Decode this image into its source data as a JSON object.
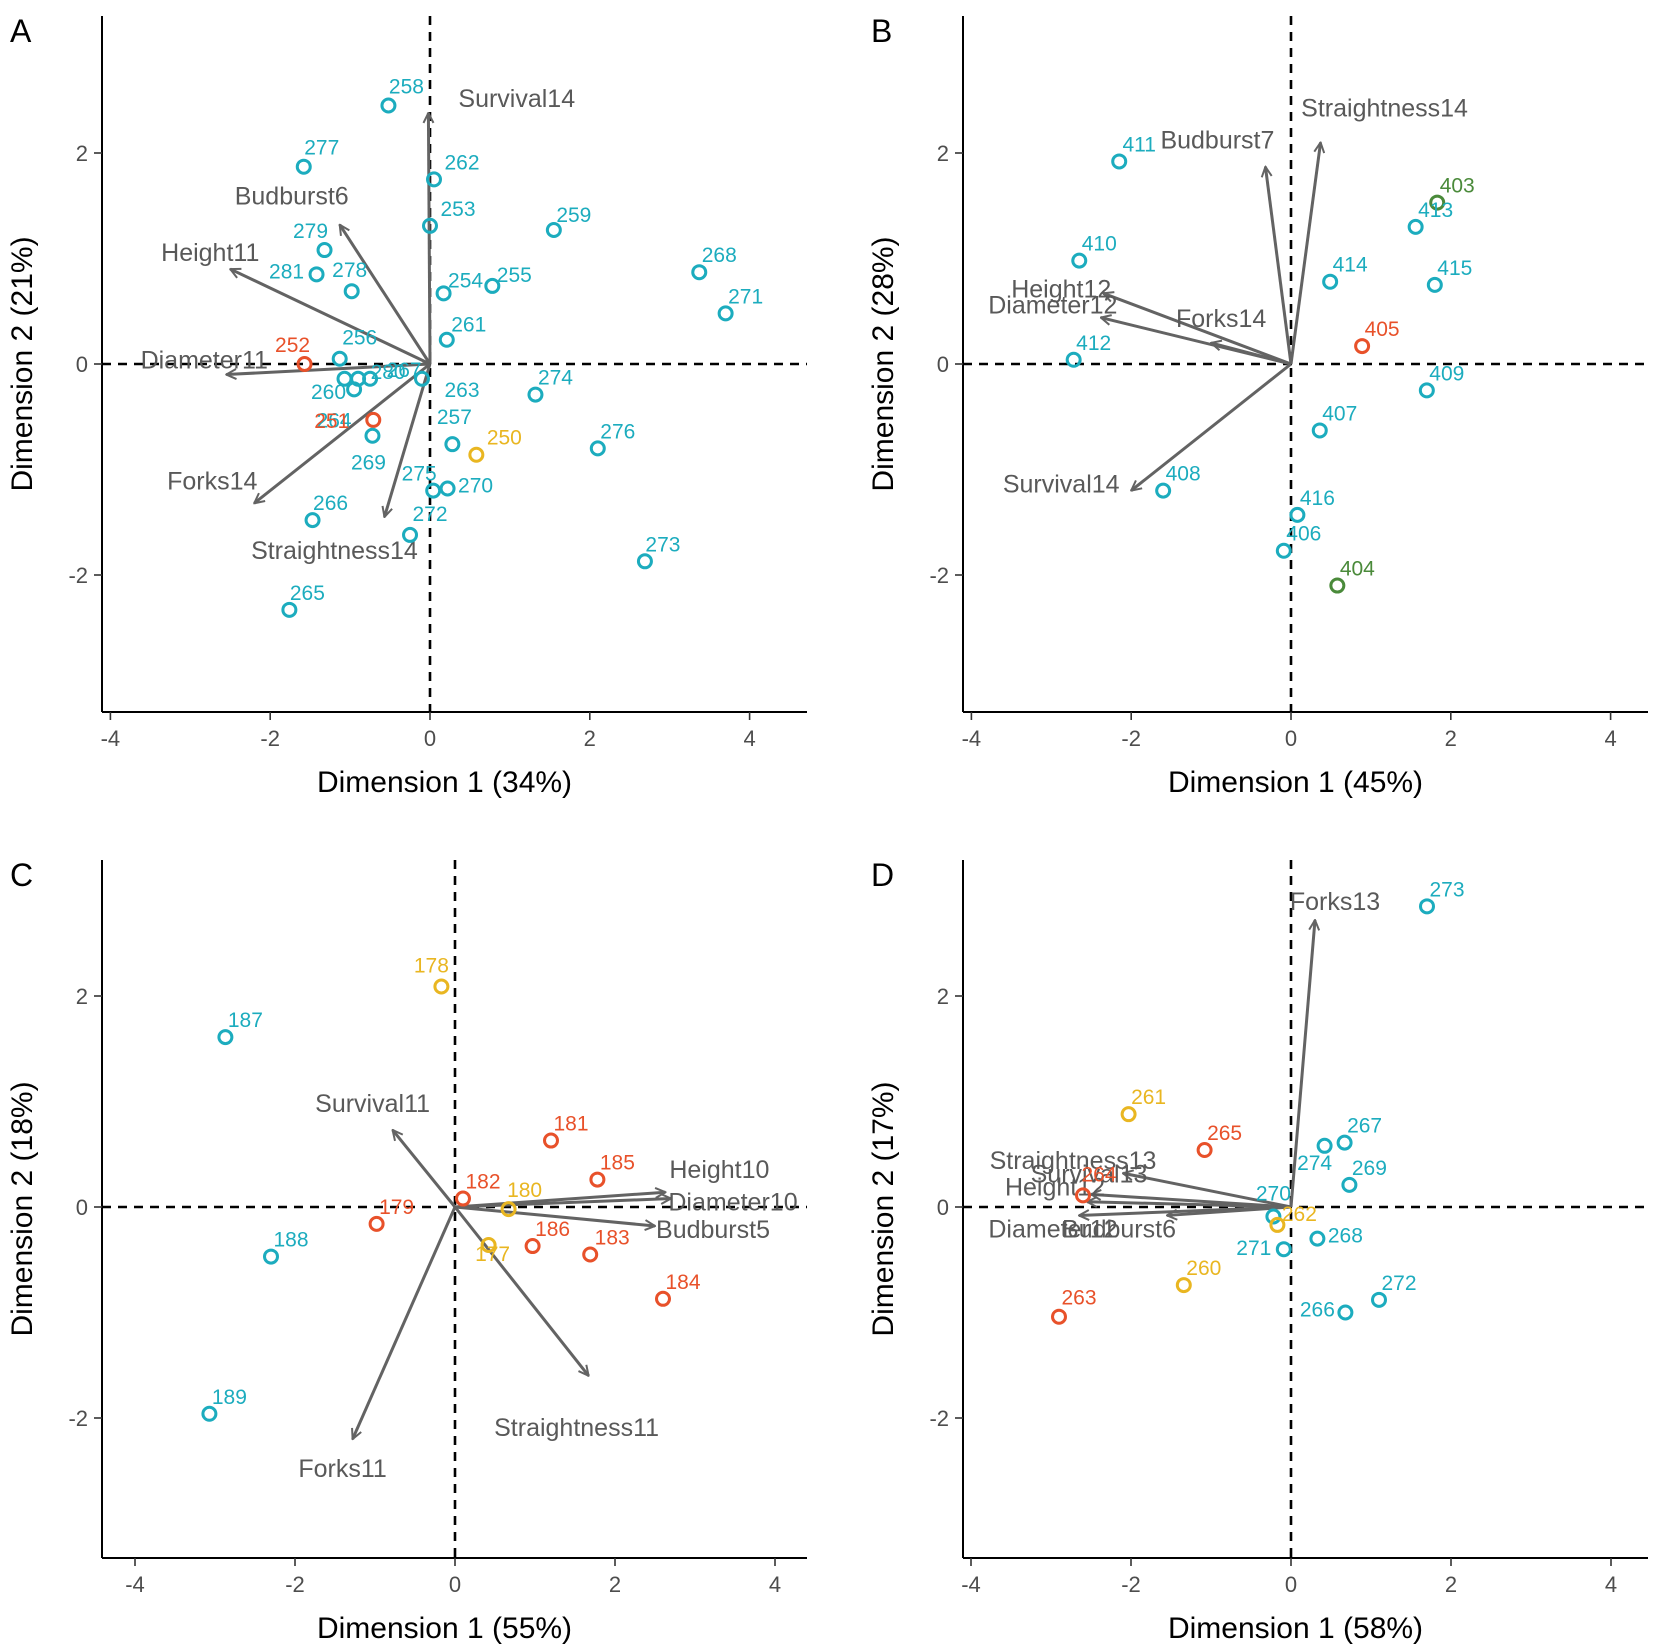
{
  "colors": {
    "group_cyan": "#1CACBE",
    "group_red": "#E8512A",
    "group_yellow": "#E9B621",
    "group_green": "#4A8A3A",
    "arrow": "#636363",
    "axis": "#000000",
    "zero_line": "#000000"
  },
  "chart_data": [
    {
      "panel": "A",
      "type": "scatter",
      "xlabel": "Dimension 1 (34%)",
      "ylabel": "Dimension 2 (21%)",
      "xlim": [
        -4.45,
        4.4
      ],
      "ylim": [
        -3.3,
        3.3
      ],
      "xticks": [
        -4,
        -2,
        0,
        2,
        4
      ],
      "yticks": [
        -2,
        0,
        2
      ],
      "grid": false,
      "points": [
        {
          "label": "258",
          "x": -0.52,
          "y": 2.45,
          "group": "cyan"
        },
        {
          "label": "277",
          "x": -1.58,
          "y": 1.87,
          "group": "cyan"
        },
        {
          "label": "262",
          "x": 0.05,
          "y": 1.75,
          "group": "cyan"
        },
        {
          "label": "253",
          "x": 0.0,
          "y": 1.31,
          "group": "cyan"
        },
        {
          "label": "259",
          "x": 1.55,
          "y": 1.27,
          "group": "cyan"
        },
        {
          "label": "279",
          "x": -1.32,
          "y": 1.08,
          "group": "cyan"
        },
        {
          "label": "268",
          "x": 3.37,
          "y": 0.87,
          "group": "cyan"
        },
        {
          "label": "281",
          "x": -1.42,
          "y": 0.85,
          "group": "cyan"
        },
        {
          "label": "278",
          "x": -0.98,
          "y": 0.69,
          "group": "cyan"
        },
        {
          "label": "254",
          "x": 0.17,
          "y": 0.67,
          "group": "cyan"
        },
        {
          "label": "255",
          "x": 0.78,
          "y": 0.74,
          "group": "cyan"
        },
        {
          "label": "271",
          "x": 3.7,
          "y": 0.48,
          "group": "cyan"
        },
        {
          "label": "261",
          "x": 0.21,
          "y": 0.23,
          "group": "cyan"
        },
        {
          "label": "256",
          "x": -1.13,
          "y": 0.05,
          "group": "cyan"
        },
        {
          "label": "252",
          "x": -1.57,
          "y": 0.0,
          "group": "red"
        },
        {
          "label": "280",
          "x": -0.9,
          "y": -0.14,
          "group": "cyan"
        },
        {
          "label": "260",
          "x": -1.07,
          "y": -0.14,
          "group": "cyan"
        },
        {
          "label": "267",
          "x": -0.75,
          "y": -0.14,
          "group": "cyan"
        },
        {
          "label": "263",
          "x": -0.1,
          "y": -0.14,
          "group": "cyan"
        },
        {
          "label": "264",
          "x": -0.95,
          "y": -0.24,
          "group": "cyan"
        },
        {
          "label": "274",
          "x": 1.32,
          "y": -0.29,
          "group": "cyan"
        },
        {
          "label": "251",
          "x": -0.71,
          "y": -0.53,
          "group": "red"
        },
        {
          "label": "269",
          "x": -0.72,
          "y": -0.68,
          "group": "cyan"
        },
        {
          "label": "257",
          "x": 0.28,
          "y": -0.76,
          "group": "cyan"
        },
        {
          "label": "250",
          "x": 0.58,
          "y": -0.86,
          "group": "yellow"
        },
        {
          "label": "276",
          "x": 2.1,
          "y": -0.8,
          "group": "cyan"
        },
        {
          "label": "275",
          "x": 0.04,
          "y": -1.2,
          "group": "cyan"
        },
        {
          "label": "270",
          "x": 0.22,
          "y": -1.18,
          "group": "cyan"
        },
        {
          "label": "266",
          "x": -1.47,
          "y": -1.48,
          "group": "cyan"
        },
        {
          "label": "272",
          "x": -0.25,
          "y": -1.62,
          "group": "cyan"
        },
        {
          "label": "273",
          "x": 2.69,
          "y": -1.87,
          "group": "cyan"
        },
        {
          "label": "265",
          "x": -1.76,
          "y": -2.33,
          "group": "cyan"
        }
      ],
      "vectors": [
        {
          "name": "Survival14",
          "x": -0.02,
          "y": 2.38
        },
        {
          "name": "Budburst6",
          "x": -1.13,
          "y": 1.32
        },
        {
          "name": "Height11",
          "x": -2.5,
          "y": 0.9
        },
        {
          "name": "Diameter11",
          "x": -2.55,
          "y": -0.1
        },
        {
          "name": "Forks14",
          "x": -2.2,
          "y": -1.32
        },
        {
          "name": "Straightness14",
          "x": -0.57,
          "y": -1.45
        }
      ]
    },
    {
      "panel": "B",
      "type": "scatter",
      "xlabel": "Dimension 1 (45%)",
      "ylabel": "Dimension 2 (28%)",
      "xlim": [
        -4.45,
        4.4
      ],
      "ylim": [
        -3.3,
        3.3
      ],
      "xticks": [
        -4,
        -2,
        0,
        2,
        4
      ],
      "yticks": [
        -2,
        0,
        2
      ],
      "grid": false,
      "points": [
        {
          "label": "411",
          "x": -2.15,
          "y": 1.92,
          "group": "cyan"
        },
        {
          "label": "403",
          "x": 1.83,
          "y": 1.53,
          "group": "green"
        },
        {
          "label": "413",
          "x": 1.56,
          "y": 1.3,
          "group": "cyan"
        },
        {
          "label": "410",
          "x": -2.65,
          "y": 0.98,
          "group": "cyan"
        },
        {
          "label": "414",
          "x": 0.49,
          "y": 0.78,
          "group": "cyan"
        },
        {
          "label": "415",
          "x": 1.8,
          "y": 0.75,
          "group": "cyan"
        },
        {
          "label": "405",
          "x": 0.89,
          "y": 0.17,
          "group": "red"
        },
        {
          "label": "412",
          "x": -2.72,
          "y": 0.04,
          "group": "cyan"
        },
        {
          "label": "409",
          "x": 1.7,
          "y": -0.25,
          "group": "cyan"
        },
        {
          "label": "407",
          "x": 0.36,
          "y": -0.63,
          "group": "cyan"
        },
        {
          "label": "408",
          "x": -1.6,
          "y": -1.2,
          "group": "cyan"
        },
        {
          "label": "416",
          "x": 0.08,
          "y": -1.43,
          "group": "cyan"
        },
        {
          "label": "406",
          "x": -0.09,
          "y": -1.77,
          "group": "cyan"
        },
        {
          "label": "404",
          "x": 0.58,
          "y": -2.1,
          "group": "green"
        }
      ],
      "vectors": [
        {
          "name": "Straightness14",
          "x": 0.37,
          "y": 2.1
        },
        {
          "name": "Budburst7",
          "x": -0.32,
          "y": 1.87
        },
        {
          "name": "Height12",
          "x": -2.35,
          "y": 0.67
        },
        {
          "name": "Diameter12",
          "x": -2.38,
          "y": 0.44
        },
        {
          "name": "Forks14",
          "x": -1.0,
          "y": 0.2
        },
        {
          "name": "Survival14",
          "x": -2.0,
          "y": -1.2
        }
      ]
    },
    {
      "panel": "C",
      "type": "scatter",
      "xlabel": "Dimension 1 (55%)",
      "ylabel": "Dimension 2 (18%)",
      "xlim": [
        -4.45,
        4.4
      ],
      "ylim": [
        -3.3,
        3.3
      ],
      "xticks": [
        -4,
        -2,
        0,
        2,
        4
      ],
      "yticks": [
        -2,
        0,
        2
      ],
      "grid": false,
      "points": [
        {
          "label": "178",
          "x": -0.17,
          "y": 2.09,
          "group": "yellow"
        },
        {
          "label": "187",
          "x": -2.87,
          "y": 1.61,
          "group": "cyan"
        },
        {
          "label": "181",
          "x": 1.2,
          "y": 0.63,
          "group": "red"
        },
        {
          "label": "185",
          "x": 1.78,
          "y": 0.26,
          "group": "red"
        },
        {
          "label": "182",
          "x": 0.1,
          "y": 0.08,
          "group": "red"
        },
        {
          "label": "180",
          "x": 0.67,
          "y": -0.02,
          "group": "yellow"
        },
        {
          "label": "179",
          "x": -0.98,
          "y": -0.16,
          "group": "red"
        },
        {
          "label": "177",
          "x": 0.42,
          "y": -0.36,
          "group": "yellow"
        },
        {
          "label": "186",
          "x": 0.97,
          "y": -0.37,
          "group": "red"
        },
        {
          "label": "183",
          "x": 1.69,
          "y": -0.45,
          "group": "red"
        },
        {
          "label": "188",
          "x": -2.3,
          "y": -0.47,
          "group": "cyan"
        },
        {
          "label": "184",
          "x": 2.6,
          "y": -0.87,
          "group": "red"
        },
        {
          "label": "189",
          "x": -3.07,
          "y": -1.96,
          "group": "cyan"
        }
      ],
      "vectors": [
        {
          "name": "Height10",
          "x": 2.63,
          "y": 0.14
        },
        {
          "name": "Diameter10",
          "x": 2.7,
          "y": 0.08
        },
        {
          "name": "Budburst5",
          "x": 2.5,
          "y": -0.18
        },
        {
          "name": "Survival11",
          "x": -0.78,
          "y": 0.73
        },
        {
          "name": "Straightness11",
          "x": 1.67,
          "y": -1.6
        },
        {
          "name": "Forks11",
          "x": -1.28,
          "y": -2.2
        }
      ]
    },
    {
      "panel": "D",
      "type": "scatter",
      "xlabel": "Dimension 1 (58%)",
      "ylabel": "Dimension 2 (17%)",
      "xlim": [
        -4.45,
        4.4
      ],
      "ylim": [
        -3.3,
        3.3
      ],
      "xticks": [
        -4,
        -2,
        0,
        2,
        4
      ],
      "yticks": [
        -2,
        0,
        2
      ],
      "grid": false,
      "points": [
        {
          "label": "273",
          "x": 1.7,
          "y": 2.85,
          "group": "cyan"
        },
        {
          "label": "261",
          "x": -2.03,
          "y": 0.88,
          "group": "yellow"
        },
        {
          "label": "267",
          "x": 0.67,
          "y": 0.61,
          "group": "cyan"
        },
        {
          "label": "274",
          "x": 0.42,
          "y": 0.58,
          "group": "cyan"
        },
        {
          "label": "265",
          "x": -1.08,
          "y": 0.54,
          "group": "red"
        },
        {
          "label": "269",
          "x": 0.73,
          "y": 0.21,
          "group": "cyan"
        },
        {
          "label": "264",
          "x": -2.6,
          "y": 0.11,
          "group": "red"
        },
        {
          "label": "270",
          "x": -0.22,
          "y": -0.09,
          "group": "cyan"
        },
        {
          "label": "262",
          "x": -0.17,
          "y": -0.17,
          "group": "yellow"
        },
        {
          "label": "268",
          "x": 0.33,
          "y": -0.3,
          "group": "cyan"
        },
        {
          "label": "271",
          "x": -0.09,
          "y": -0.4,
          "group": "cyan"
        },
        {
          "label": "260",
          "x": -1.34,
          "y": -0.74,
          "group": "yellow"
        },
        {
          "label": "272",
          "x": 1.1,
          "y": -0.88,
          "group": "cyan"
        },
        {
          "label": "266",
          "x": 0.68,
          "y": -1.0,
          "group": "cyan"
        },
        {
          "label": "263",
          "x": -2.9,
          "y": -1.04,
          "group": "red"
        }
      ],
      "vectors": [
        {
          "name": "Forks13",
          "x": 0.3,
          "y": 2.72
        },
        {
          "name": "Straightness13",
          "x": -2.1,
          "y": 0.32
        },
        {
          "name": "Survival13",
          "x": -2.5,
          "y": 0.12
        },
        {
          "name": "Height12",
          "x": -2.55,
          "y": 0.05
        },
        {
          "name": "Diameter12",
          "x": -2.65,
          "y": -0.08
        },
        {
          "name": "Budburst6",
          "x": -1.55,
          "y": -0.08
        }
      ]
    }
  ]
}
